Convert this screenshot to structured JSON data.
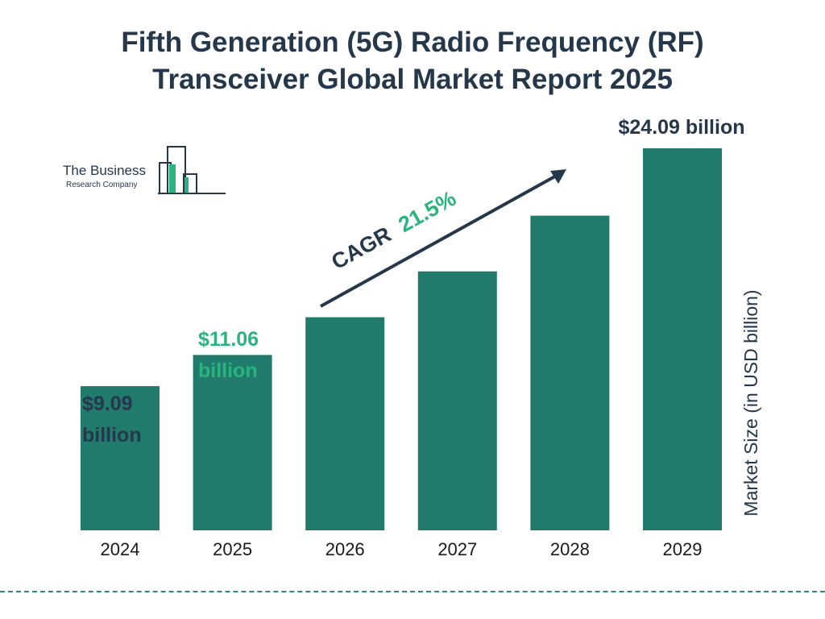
{
  "header": {
    "title_line1": "Fifth Generation (5G) Radio Frequency (RF)",
    "title_line2": "Transceiver Global Market Report 2025"
  },
  "logo": {
    "line1": "The Business",
    "line2": "Research Company",
    "icon": "bar-building-logo-icon"
  },
  "colors": {
    "bar": "#217b6c",
    "title": "#25374b",
    "highlight": "#2bb37f",
    "dash": "#2a8c7a"
  },
  "cagr": {
    "label": "CAGR",
    "value": "21.5%"
  },
  "labels": {
    "y2024_line1": "$9.09",
    "y2024_line2": "billion",
    "y2025_line1": "$11.06",
    "y2025_line2": "billion",
    "y2029": "$24.09 billion"
  },
  "chart_data": {
    "type": "bar",
    "title": "Fifth Generation (5G) Radio Frequency (RF) Transceiver Global Market Report 2025",
    "categories": [
      "2024",
      "2025",
      "2026",
      "2027",
      "2028",
      "2029"
    ],
    "values": [
      9.09,
      11.06,
      13.44,
      16.33,
      19.84,
      24.09
    ],
    "ylabel": "Market Size (in USD billion)",
    "xlabel": "",
    "ylim": [
      0,
      24.09
    ],
    "grid": false,
    "legend": "none"
  }
}
